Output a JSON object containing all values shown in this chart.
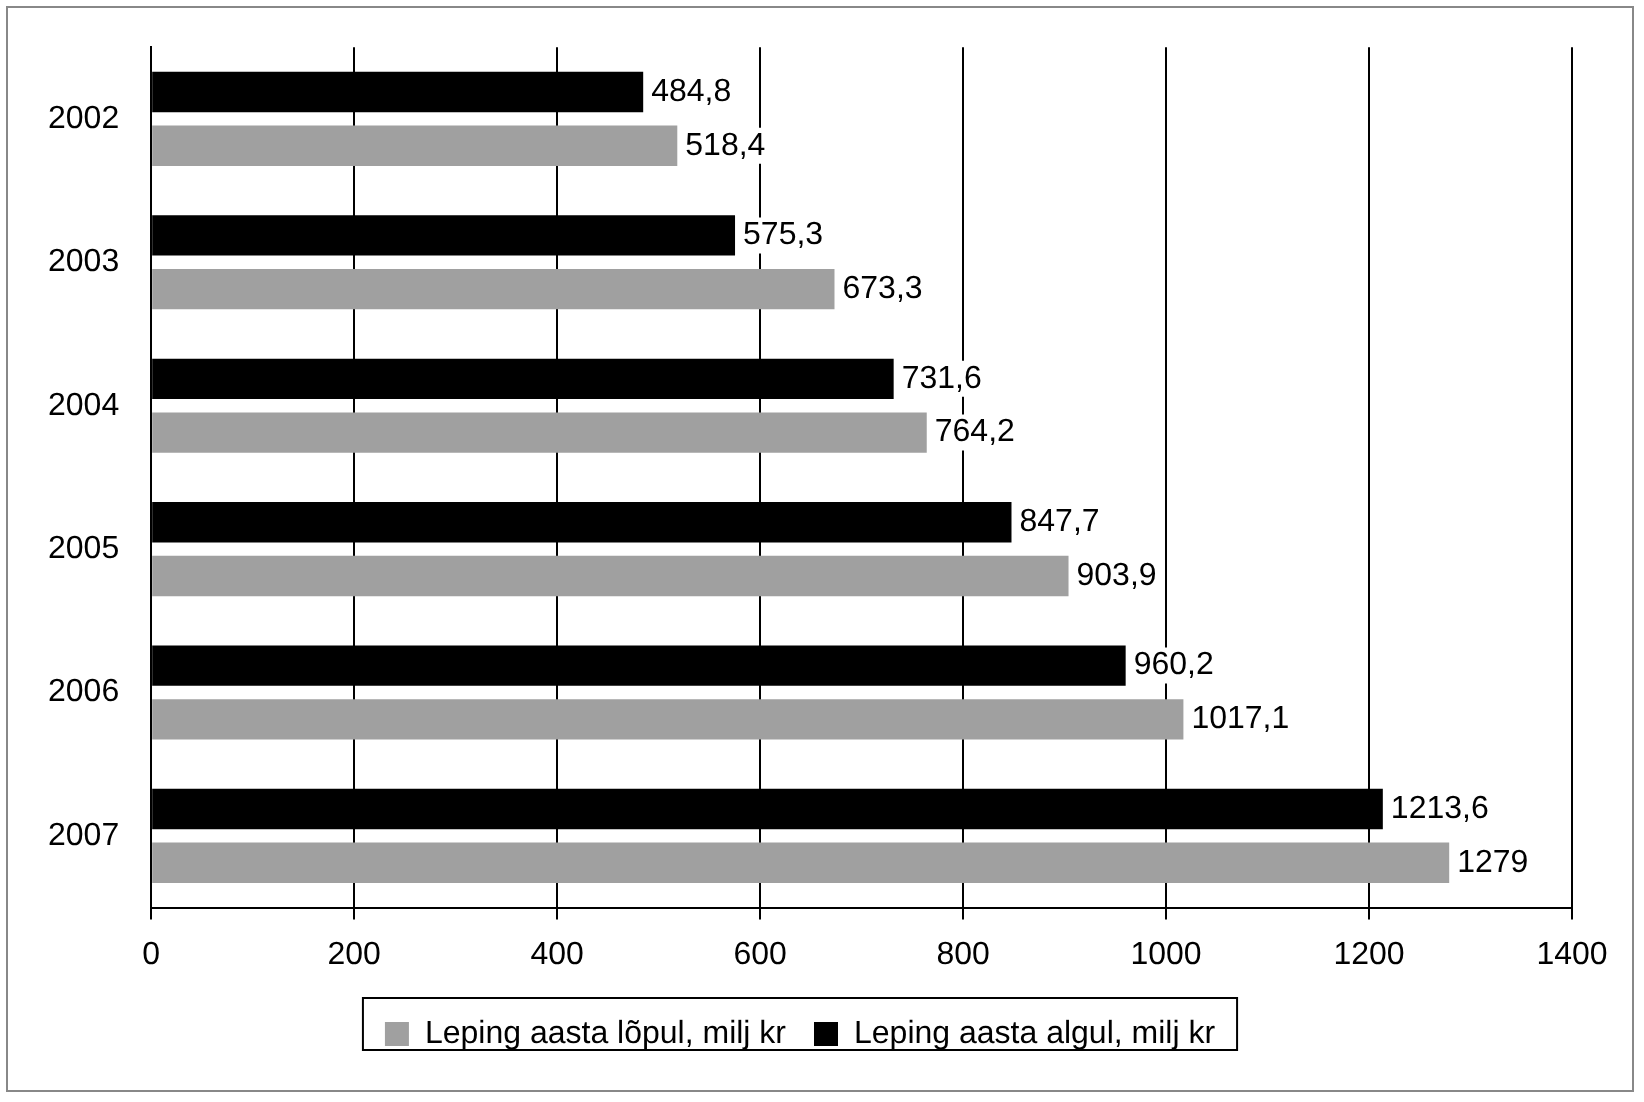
{
  "chart_data": {
    "type": "bar",
    "orientation": "horizontal",
    "categories": [
      "2002",
      "2003",
      "2004",
      "2005",
      "2006",
      "2007"
    ],
    "series": [
      {
        "name": "Leping aasta algul, milj kr",
        "color": "#000000",
        "values": [
          484.8,
          575.3,
          731.6,
          847.7,
          960.2,
          1213.6
        ],
        "value_labels": [
          "484,8",
          "575,3",
          "731,6",
          "847,7",
          "960,2",
          "1213,6"
        ]
      },
      {
        "name": "Leping aasta lõpul, milj kr",
        "color": "#a0a0a0",
        "values": [
          518.4,
          673.3,
          764.2,
          903.9,
          1017.1,
          1279
        ],
        "value_labels": [
          "518,4",
          "673,3",
          "764,2",
          "903,9",
          "1017,1",
          "1279"
        ]
      }
    ],
    "xlim": [
      0,
      1400
    ],
    "xticks": [
      0,
      200,
      400,
      600,
      800,
      1000,
      1200,
      1400
    ],
    "grid": "x",
    "legend": "bottom"
  }
}
